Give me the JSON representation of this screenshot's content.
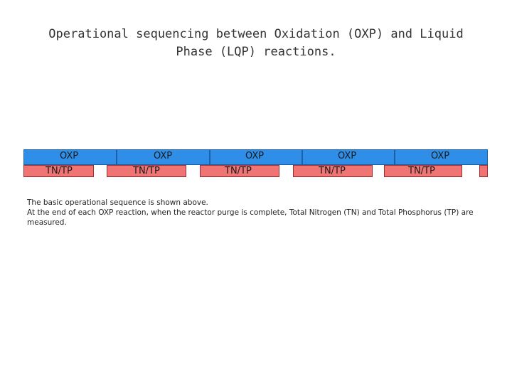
{
  "title": "Operational sequencing between Oxidation (OXP) and Liquid Phase (LQP) reactions.",
  "sequence": {
    "oxp_label": "OXP",
    "tn_tp_label": "TN/TP",
    "cycles": 5,
    "colors": {
      "oxp": "#2f8fe8",
      "tn_tp": "#f07474"
    }
  },
  "notes": [
    "The basic operational sequence is shown above.",
    "At the end of each OXP reaction, when the reactor purge is complete, Total Nitrogen (TN) and Total  Phosphorus (TP) are measured."
  ]
}
